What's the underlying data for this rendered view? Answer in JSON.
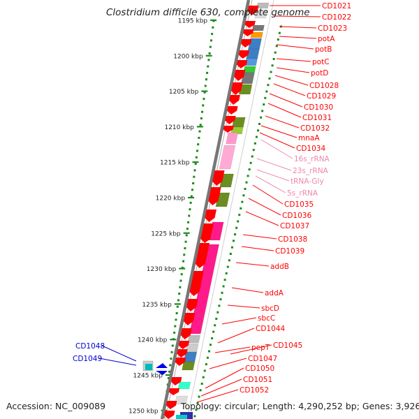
{
  "title": "Clostridium difficile 630, complete genome",
  "footer": {
    "accession": "Accession: NC_009089",
    "summary": "Topology: circular; Length: 4,290,252 bp; Genes: 3,926"
  },
  "colors": {
    "cds": "#ff0000",
    "rrna_trna_label": "#ee88aa",
    "left_label": "#0000cc",
    "tick": "#1a8a1a",
    "backbone": "#888888"
  },
  "scale_labels": [
    "1195 kbp",
    "1200 kbp",
    "1205 kbp",
    "1210 kbp",
    "1215 kbp",
    "1220 kbp",
    "1225 kbp",
    "1230 kbp",
    "1235 kbp",
    "1240 kbp",
    "1245 kbp",
    "1250 kbp"
  ],
  "right_labels": [
    {
      "text": "CD1021",
      "kind": "gene"
    },
    {
      "text": "CD1022",
      "kind": "gene"
    },
    {
      "text": "CD1023",
      "kind": "gene"
    },
    {
      "text": "potA",
      "kind": "gene"
    },
    {
      "text": "potB",
      "kind": "gene"
    },
    {
      "text": "potC",
      "kind": "gene"
    },
    {
      "text": "potD",
      "kind": "gene"
    },
    {
      "text": "CD1028",
      "kind": "gene"
    },
    {
      "text": "CD1029",
      "kind": "gene"
    },
    {
      "text": "CD1030",
      "kind": "gene"
    },
    {
      "text": "CD1031",
      "kind": "gene"
    },
    {
      "text": "CD1032",
      "kind": "gene"
    },
    {
      "text": "mnaA",
      "kind": "gene"
    },
    {
      "text": "CD1034",
      "kind": "gene"
    },
    {
      "text": "16s_rRNA",
      "kind": "rna"
    },
    {
      "text": "23s_rRNA",
      "kind": "rna"
    },
    {
      "text": "tRNA-Gly",
      "kind": "rna"
    },
    {
      "text": "5s_rRNA",
      "kind": "rna"
    },
    {
      "text": "CD1035",
      "kind": "gene"
    },
    {
      "text": "CD1036",
      "kind": "gene"
    },
    {
      "text": "CD1037",
      "kind": "gene"
    },
    {
      "text": "CD1038",
      "kind": "gene"
    },
    {
      "text": "CD1039",
      "kind": "gene"
    },
    {
      "text": "addB",
      "kind": "gene"
    },
    {
      "text": "addA",
      "kind": "gene"
    },
    {
      "text": "sbcD",
      "kind": "gene"
    },
    {
      "text": "sbcC",
      "kind": "gene"
    },
    {
      "text": "CD1044",
      "kind": "gene"
    },
    {
      "text": "CD1045",
      "kind": "gene"
    },
    {
      "text": "pepT",
      "kind": "gene"
    },
    {
      "text": "CD1047",
      "kind": "gene"
    },
    {
      "text": "CD1050",
      "kind": "gene"
    },
    {
      "text": "CD1051",
      "kind": "gene"
    },
    {
      "text": "CD1052",
      "kind": "gene"
    }
  ],
  "left_labels": [
    "CD1048",
    "CD1049"
  ]
}
